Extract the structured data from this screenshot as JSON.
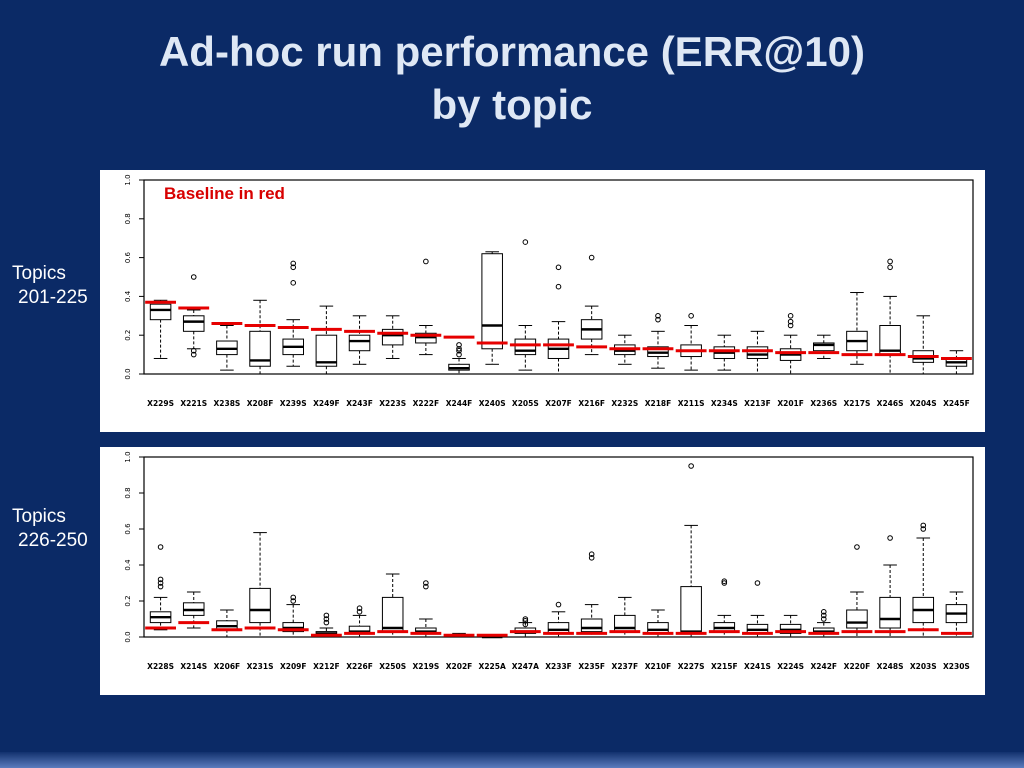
{
  "slide": {
    "title_line1": "Ad-hoc run performance (ERR@10)",
    "title_line2": "by topic"
  },
  "side_labels": [
    {
      "line1": "Topics",
      "line2": "201-225"
    },
    {
      "line1": "Topics",
      "line2": "226-250"
    }
  ],
  "colors": {
    "background": "#0b2a66",
    "panel": "#ffffff",
    "baseline_red": "#e60000",
    "title_text": "#dfe8f5"
  },
  "chart_data": [
    {
      "type": "boxplot",
      "title": "Topics 201-225",
      "annotation": "Baseline in red",
      "ylim": [
        0,
        1
      ],
      "yticks": [
        "0.0",
        "0.2",
        "0.4",
        "0.6",
        "0.8",
        "1.0"
      ],
      "categories": [
        "X229S",
        "X221S",
        "X238S",
        "X208F",
        "X239S",
        "X249F",
        "X243F",
        "X223S",
        "X222F",
        "X244F",
        "X240S",
        "X205S",
        "X207F",
        "X216F",
        "X232S",
        "X218F",
        "X211S",
        "X234S",
        "X213F",
        "X201F",
        "X236S",
        "X217S",
        "X246S",
        "X204S",
        "X245F"
      ],
      "boxes": [
        {
          "c": "X229S",
          "lo": 0.08,
          "q1": 0.28,
          "me": 0.33,
          "q3": 0.36,
          "hi": 0.38,
          "bl": 0.37,
          "out": []
        },
        {
          "c": "X221S",
          "lo": 0.13,
          "q1": 0.22,
          "me": 0.27,
          "q3": 0.3,
          "hi": 0.33,
          "bl": 0.34,
          "out": [
            0.5,
            0.12,
            0.1
          ]
        },
        {
          "c": "X238S",
          "lo": 0.02,
          "q1": 0.1,
          "me": 0.13,
          "q3": 0.17,
          "hi": 0.25,
          "bl": 0.26,
          "out": []
        },
        {
          "c": "X208F",
          "lo": 0.0,
          "q1": 0.04,
          "me": 0.07,
          "q3": 0.22,
          "hi": 0.38,
          "bl": 0.25,
          "out": []
        },
        {
          "c": "X239S",
          "lo": 0.04,
          "q1": 0.1,
          "me": 0.14,
          "q3": 0.18,
          "hi": 0.28,
          "bl": 0.24,
          "out": [
            0.47,
            0.55,
            0.57
          ]
        },
        {
          "c": "X249F",
          "lo": 0.0,
          "q1": 0.04,
          "me": 0.06,
          "q3": 0.2,
          "hi": 0.35,
          "bl": 0.23,
          "out": []
        },
        {
          "c": "X243F",
          "lo": 0.05,
          "q1": 0.12,
          "me": 0.17,
          "q3": 0.2,
          "hi": 0.3,
          "bl": 0.22,
          "out": []
        },
        {
          "c": "X223S",
          "lo": 0.08,
          "q1": 0.15,
          "me": 0.2,
          "q3": 0.23,
          "hi": 0.3,
          "bl": 0.21,
          "out": []
        },
        {
          "c": "X222F",
          "lo": 0.1,
          "q1": 0.16,
          "me": 0.19,
          "q3": 0.21,
          "hi": 0.25,
          "bl": 0.2,
          "out": [
            0.58
          ]
        },
        {
          "c": "X244F",
          "lo": 0.0,
          "q1": 0.02,
          "me": 0.03,
          "q3": 0.05,
          "hi": 0.08,
          "bl": 0.19,
          "out": [
            0.1,
            0.12,
            0.13,
            0.15
          ]
        },
        {
          "c": "X240S",
          "lo": 0.05,
          "q1": 0.13,
          "me": 0.25,
          "q3": 0.62,
          "hi": 0.63,
          "bl": 0.16,
          "out": []
        },
        {
          "c": "X205S",
          "lo": 0.02,
          "q1": 0.1,
          "me": 0.12,
          "q3": 0.18,
          "hi": 0.25,
          "bl": 0.15,
          "out": [
            0.68
          ]
        },
        {
          "c": "X207F",
          "lo": 0.0,
          "q1": 0.08,
          "me": 0.13,
          "q3": 0.18,
          "hi": 0.27,
          "bl": 0.15,
          "out": [
            0.45,
            0.55
          ]
        },
        {
          "c": "X216F",
          "lo": 0.1,
          "q1": 0.18,
          "me": 0.23,
          "q3": 0.28,
          "hi": 0.35,
          "bl": 0.14,
          "out": [
            0.6
          ]
        },
        {
          "c": "X232S",
          "lo": 0.05,
          "q1": 0.1,
          "me": 0.12,
          "q3": 0.15,
          "hi": 0.2,
          "bl": 0.13,
          "out": []
        },
        {
          "c": "X218F",
          "lo": 0.03,
          "q1": 0.09,
          "me": 0.11,
          "q3": 0.14,
          "hi": 0.22,
          "bl": 0.13,
          "out": [
            0.28,
            0.3
          ]
        },
        {
          "c": "X211S",
          "lo": 0.02,
          "q1": 0.09,
          "me": 0.12,
          "q3": 0.15,
          "hi": 0.25,
          "bl": 0.12,
          "out": [
            0.3
          ]
        },
        {
          "c": "X234S",
          "lo": 0.02,
          "q1": 0.08,
          "me": 0.11,
          "q3": 0.14,
          "hi": 0.2,
          "bl": 0.12,
          "out": []
        },
        {
          "c": "X213F",
          "lo": 0.0,
          "q1": 0.08,
          "me": 0.1,
          "q3": 0.14,
          "hi": 0.22,
          "bl": 0.12,
          "out": []
        },
        {
          "c": "X201F",
          "lo": 0.0,
          "q1": 0.07,
          "me": 0.1,
          "q3": 0.13,
          "hi": 0.2,
          "bl": 0.11,
          "out": [
            0.25,
            0.27,
            0.3
          ]
        },
        {
          "c": "X236S",
          "lo": 0.08,
          "q1": 0.12,
          "me": 0.15,
          "q3": 0.16,
          "hi": 0.2,
          "bl": 0.11,
          "out": []
        },
        {
          "c": "X217S",
          "lo": 0.05,
          "q1": 0.12,
          "me": 0.17,
          "q3": 0.22,
          "hi": 0.42,
          "bl": 0.1,
          "out": []
        },
        {
          "c": "X246S",
          "lo": 0.0,
          "q1": 0.1,
          "me": 0.12,
          "q3": 0.25,
          "hi": 0.4,
          "bl": 0.1,
          "out": [
            0.55,
            0.58
          ]
        },
        {
          "c": "X204S",
          "lo": 0.0,
          "q1": 0.06,
          "me": 0.08,
          "q3": 0.12,
          "hi": 0.3,
          "bl": 0.09,
          "out": []
        },
        {
          "c": "X245F",
          "lo": 0.0,
          "q1": 0.04,
          "me": 0.06,
          "q3": 0.08,
          "hi": 0.12,
          "bl": 0.08,
          "out": []
        }
      ]
    },
    {
      "type": "boxplot",
      "title": "Topics 226-250",
      "annotation": "",
      "ylim": [
        0,
        1
      ],
      "yticks": [
        "0.0",
        "0.2",
        "0.4",
        "0.6",
        "0.8",
        "1.0"
      ],
      "categories": [
        "X228S",
        "X214S",
        "X206F",
        "X231S",
        "X209F",
        "X212F",
        "X226F",
        "X250S",
        "X219S",
        "X202F",
        "X225A",
        "X247A",
        "X233F",
        "X235F",
        "X237F",
        "X210F",
        "X227S",
        "X215F",
        "X241S",
        "X224S",
        "X242F",
        "X220F",
        "X248S",
        "X203S",
        "X230S"
      ],
      "boxes": [
        {
          "c": "X228S",
          "lo": 0.04,
          "q1": 0.08,
          "me": 0.11,
          "q3": 0.14,
          "hi": 0.22,
          "bl": 0.05,
          "out": [
            0.28,
            0.3,
            0.32,
            0.5
          ]
        },
        {
          "c": "X214S",
          "lo": 0.05,
          "q1": 0.12,
          "me": 0.15,
          "q3": 0.19,
          "hi": 0.25,
          "bl": 0.08,
          "out": []
        },
        {
          "c": "X206F",
          "lo": 0.0,
          "q1": 0.04,
          "me": 0.06,
          "q3": 0.09,
          "hi": 0.15,
          "bl": 0.04,
          "out": []
        },
        {
          "c": "X231S",
          "lo": 0.0,
          "q1": 0.08,
          "me": 0.15,
          "q3": 0.27,
          "hi": 0.58,
          "bl": 0.05,
          "out": []
        },
        {
          "c": "X209F",
          "lo": 0.0,
          "q1": 0.03,
          "me": 0.05,
          "q3": 0.08,
          "hi": 0.18,
          "bl": 0.04,
          "out": [
            0.2,
            0.22
          ]
        },
        {
          "c": "X212F",
          "lo": 0.0,
          "q1": 0.01,
          "me": 0.02,
          "q3": 0.03,
          "hi": 0.05,
          "bl": 0.01,
          "out": [
            0.08,
            0.1,
            0.12
          ]
        },
        {
          "c": "X226F",
          "lo": 0.0,
          "q1": 0.02,
          "me": 0.03,
          "q3": 0.06,
          "hi": 0.12,
          "bl": 0.02,
          "out": [
            0.14,
            0.16
          ]
        },
        {
          "c": "X250S",
          "lo": 0.0,
          "q1": 0.03,
          "me": 0.05,
          "q3": 0.22,
          "hi": 0.35,
          "bl": 0.03,
          "out": []
        },
        {
          "c": "X219S",
          "lo": 0.0,
          "q1": 0.02,
          "me": 0.03,
          "q3": 0.05,
          "hi": 0.1,
          "bl": 0.02,
          "out": [
            0.28,
            0.3
          ]
        },
        {
          "c": "X202F",
          "lo": 0.0,
          "q1": 0.0,
          "me": 0.01,
          "q3": 0.01,
          "hi": 0.02,
          "bl": 0.01,
          "out": []
        },
        {
          "c": "X225A",
          "lo": 0.0,
          "q1": 0.0,
          "me": 0.0,
          "q3": 0.01,
          "hi": 0.01,
          "bl": 0.01,
          "out": []
        },
        {
          "c": "X247A",
          "lo": 0.0,
          "q1": 0.02,
          "me": 0.03,
          "q3": 0.05,
          "hi": 0.08,
          "bl": 0.03,
          "out": [
            0.07,
            0.09,
            0.1
          ]
        },
        {
          "c": "X233F",
          "lo": 0.0,
          "q1": 0.02,
          "me": 0.04,
          "q3": 0.08,
          "hi": 0.14,
          "bl": 0.02,
          "out": [
            0.18
          ]
        },
        {
          "c": "X235F",
          "lo": 0.0,
          "q1": 0.03,
          "me": 0.05,
          "q3": 0.1,
          "hi": 0.18,
          "bl": 0.02,
          "out": [
            0.44,
            0.46
          ]
        },
        {
          "c": "X237F",
          "lo": 0.0,
          "q1": 0.03,
          "me": 0.05,
          "q3": 0.12,
          "hi": 0.22,
          "bl": 0.03,
          "out": []
        },
        {
          "c": "X210F",
          "lo": 0.0,
          "q1": 0.02,
          "me": 0.04,
          "q3": 0.08,
          "hi": 0.15,
          "bl": 0.02,
          "out": []
        },
        {
          "c": "X227S",
          "lo": 0.0,
          "q1": 0.02,
          "me": 0.03,
          "q3": 0.28,
          "hi": 0.62,
          "bl": 0.02,
          "out": [
            0.95
          ]
        },
        {
          "c": "X215F",
          "lo": 0.0,
          "q1": 0.03,
          "me": 0.05,
          "q3": 0.08,
          "hi": 0.12,
          "bl": 0.03,
          "out": [
            0.3,
            0.31
          ]
        },
        {
          "c": "X241S",
          "lo": 0.0,
          "q1": 0.02,
          "me": 0.04,
          "q3": 0.07,
          "hi": 0.12,
          "bl": 0.02,
          "out": [
            0.3
          ]
        },
        {
          "c": "X224S",
          "lo": 0.0,
          "q1": 0.02,
          "me": 0.04,
          "q3": 0.07,
          "hi": 0.12,
          "bl": 0.03,
          "out": []
        },
        {
          "c": "X242F",
          "lo": 0.0,
          "q1": 0.02,
          "me": 0.03,
          "q3": 0.05,
          "hi": 0.08,
          "bl": 0.02,
          "out": [
            0.1,
            0.12,
            0.14
          ]
        },
        {
          "c": "X220F",
          "lo": 0.0,
          "q1": 0.05,
          "me": 0.08,
          "q3": 0.15,
          "hi": 0.25,
          "bl": 0.03,
          "out": [
            0.5
          ]
        },
        {
          "c": "X248S",
          "lo": 0.0,
          "q1": 0.05,
          "me": 0.1,
          "q3": 0.22,
          "hi": 0.4,
          "bl": 0.03,
          "out": [
            0.55
          ]
        },
        {
          "c": "X203S",
          "lo": 0.0,
          "q1": 0.08,
          "me": 0.15,
          "q3": 0.22,
          "hi": 0.55,
          "bl": 0.04,
          "out": [
            0.6,
            0.62
          ]
        },
        {
          "c": "X230S",
          "lo": 0.0,
          "q1": 0.08,
          "me": 0.13,
          "q3": 0.18,
          "hi": 0.25,
          "bl": 0.02,
          "out": []
        }
      ]
    }
  ]
}
